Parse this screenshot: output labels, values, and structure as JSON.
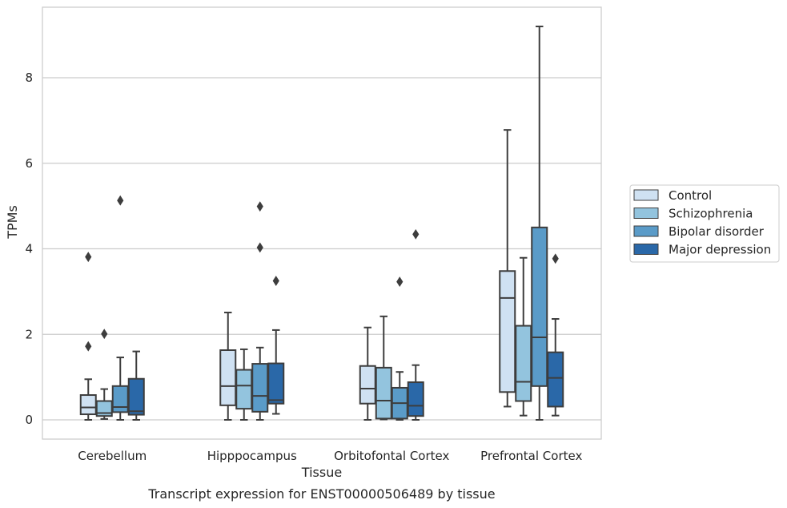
{
  "chart_data": {
    "type": "box",
    "title": "",
    "caption": "Transcript expression for ENST00000506489 by tissue",
    "xlabel": "Tissue",
    "ylabel": "TPMs",
    "ylim": [
      -0.45,
      9.65
    ],
    "yticks": [
      0,
      2,
      4,
      6,
      8
    ],
    "categories": [
      "Cerebellum",
      "Hipppocampus",
      "Orbitofontal Cortex",
      "Prefrontal Cortex"
    ],
    "grid": "horizontal",
    "legend_position": "right",
    "series": [
      {
        "name": "Control",
        "color": "#cfe1f2",
        "boxes": [
          {
            "min": 0.0,
            "q1": 0.13,
            "median": 0.29,
            "q3": 0.58,
            "max": 0.95,
            "outliers": [
              1.72,
              3.81
            ]
          },
          {
            "min": 0.0,
            "q1": 0.34,
            "median": 0.79,
            "q3": 1.63,
            "max": 2.51,
            "outliers": []
          },
          {
            "min": 0.0,
            "q1": 0.38,
            "median": 0.73,
            "q3": 1.26,
            "max": 2.16,
            "outliers": []
          },
          {
            "min": 0.31,
            "q1": 0.65,
            "median": 2.85,
            "q3": 3.48,
            "max": 6.78,
            "outliers": []
          }
        ]
      },
      {
        "name": "Schizophrenia",
        "color": "#93c4de",
        "boxes": [
          {
            "min": 0.02,
            "q1": 0.09,
            "median": 0.16,
            "q3": 0.44,
            "max": 0.72,
            "outliers": [
              2.01
            ]
          },
          {
            "min": 0.0,
            "q1": 0.26,
            "median": 0.8,
            "q3": 1.17,
            "max": 1.65,
            "outliers": []
          },
          {
            "min": 0.01,
            "q1": 0.03,
            "median": 0.45,
            "q3": 1.22,
            "max": 2.42,
            "outliers": []
          },
          {
            "min": 0.1,
            "q1": 0.44,
            "median": 0.89,
            "q3": 2.2,
            "max": 3.79,
            "outliers": []
          }
        ]
      },
      {
        "name": "Bipolar disorder",
        "color": "#5a9bc8",
        "boxes": [
          {
            "min": 0.0,
            "q1": 0.18,
            "median": 0.3,
            "q3": 0.79,
            "max": 1.46,
            "outliers": [
              5.13
            ]
          },
          {
            "min": 0.0,
            "q1": 0.19,
            "median": 0.56,
            "q3": 1.31,
            "max": 1.69,
            "outliers": [
              4.03,
              4.99
            ]
          },
          {
            "min": 0.0,
            "q1": 0.03,
            "median": 0.39,
            "q3": 0.75,
            "max": 1.12,
            "outliers": [
              3.23
            ]
          },
          {
            "min": 0.0,
            "q1": 0.79,
            "median": 1.93,
            "q3": 4.5,
            "max": 9.2,
            "outliers": []
          }
        ]
      },
      {
        "name": "Major depression",
        "color": "#2a68a8",
        "boxes": [
          {
            "min": 0.0,
            "q1": 0.12,
            "median": 0.2,
            "q3": 0.96,
            "max": 1.6,
            "outliers": []
          },
          {
            "min": 0.14,
            "q1": 0.38,
            "median": 0.46,
            "q3": 1.32,
            "max": 2.1,
            "outliers": [
              3.25
            ]
          },
          {
            "min": 0.0,
            "q1": 0.09,
            "median": 0.33,
            "q3": 0.88,
            "max": 1.28,
            "outliers": [
              4.34
            ]
          },
          {
            "min": 0.1,
            "q1": 0.31,
            "median": 0.98,
            "q3": 1.58,
            "max": 2.36,
            "outliers": [
              3.77
            ]
          }
        ]
      }
    ]
  }
}
